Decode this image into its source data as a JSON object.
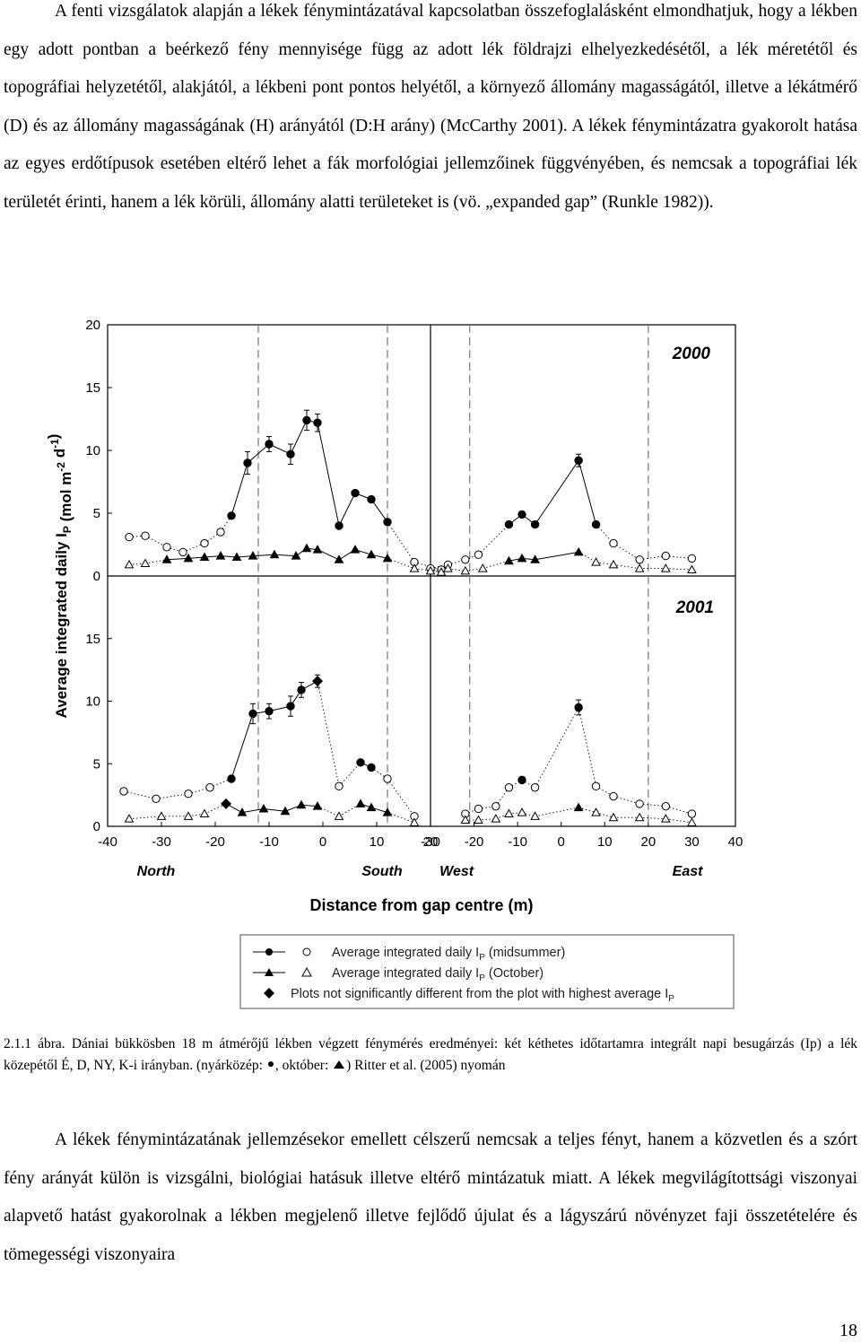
{
  "paragraph1": "A fenti vizsgálatok alapján a lékek fénymintázatával kapcsolatban összefoglalásként elmondhatjuk, hogy a lékben egy adott pontban a beérkező fény mennyisége függ az adott lék földrajzi elhelyezkedésétől, a lék méretétől és topográfiai helyzetétől, alakjától, a lékbeni pont pontos helyétől, a környező állomány magasságától, illetve a lékátmérő (D) és az állomány magasságának (H) arányától (D:H arány) (McCarthy 2001). A lékek fénymintázatra gyakorolt hatása az egyes erdőtípusok esetében eltérő lehet a fák morfológiai jellemzőinek függvényében, és nemcsak a topográfiai lék területét érinti, hanem a lék körüli, állomány alatti területeket is (vö. „expanded gap” (Runkle 1982)).",
  "caption": {
    "part1": "2.1.1 ábra. Dániai bükkösben 18 m átmérőjű lékben végzett fénymérés eredményei: két kéthetes időtartamra integrált napi besugárzás (Ip) a lék közepétől É, D, NY, K-i irányban. (nyárközép: ",
    "part2": ", október: ",
    "part3": ") Ritter et al. (2005) nyomán"
  },
  "paragraph2": "A lékek fénymintázatának jellemzésekor emellett célszerű nemcsak a teljes fényt, hanem a közvetlen és a szórt fény arányát külön is vizsgálni, biológiai hatásuk illetve eltérő mintázatuk miatt. A lékek megvilágítottsági viszonyai alapvető hatást gyakorolnak a lékben megjelenő illetve fejlődő újulat és a lágyszárú növényzet faji összetételére és tömegességi viszonyaira",
  "page_number": "18",
  "chart_data": {
    "type": "scatter",
    "ylabel": "Average integrated daily I",
    "ylabel_sub": "P",
    "ylabel_units": " (mol m",
    "ylabel_exp1": "-2",
    "ylabel_d": " d",
    "ylabel_exp2": "-1",
    "ylabel_close": ")",
    "xlabel": "Distance from gap centre (m)",
    "ylim": [
      0,
      20
    ],
    "yticks": [
      "0",
      "5",
      "10",
      "15",
      "20"
    ],
    "left_xlim": [
      -40,
      20
    ],
    "right_xlim": [
      -30,
      40
    ],
    "left_xticks": [
      "-40",
      "-30",
      "-20",
      "-10",
      "0",
      "10",
      "20"
    ],
    "right_xticks": [
      "-30",
      "-20",
      "-10",
      "0",
      "10",
      "20",
      "30",
      "40"
    ],
    "direction_labels": [
      "North",
      "South",
      "West",
      "East"
    ],
    "panels": [
      {
        "year": "2000",
        "row": 0,
        "side": "left",
        "gap_edges": [
          -12,
          12
        ],
        "midsummer": [
          [
            -36,
            3.1,
            "o"
          ],
          [
            -33,
            3.2,
            "o"
          ],
          [
            -29,
            2.3,
            "o"
          ],
          [
            -26,
            1.9,
            "o"
          ],
          [
            -22,
            2.6,
            "o"
          ],
          [
            -19,
            3.5,
            "o"
          ],
          [
            -17,
            4.8,
            "f"
          ],
          [
            -14,
            9.0,
            "f"
          ],
          [
            -10,
            10.5,
            "f"
          ],
          [
            -6,
            9.7,
            "f"
          ],
          [
            -3,
            12.4,
            "f"
          ],
          [
            -1,
            12.2,
            "f"
          ],
          [
            3,
            4.0,
            "f"
          ],
          [
            6,
            6.6,
            "f"
          ],
          [
            9,
            6.1,
            "f"
          ],
          [
            12,
            4.3,
            "f"
          ],
          [
            17,
            1.1,
            "o"
          ],
          [
            22,
            0.5,
            "o"
          ]
        ],
        "october": [
          [
            -36,
            0.9,
            "o"
          ],
          [
            -33,
            1.0,
            "o"
          ],
          [
            -29,
            1.3,
            "f"
          ],
          [
            -25,
            1.4,
            "f"
          ],
          [
            -22,
            1.5,
            "f"
          ],
          [
            -19,
            1.6,
            "f"
          ],
          [
            -16,
            1.5,
            "f"
          ],
          [
            -13,
            1.6,
            "f"
          ],
          [
            -9,
            1.7,
            "f"
          ],
          [
            -5,
            1.6,
            "f"
          ],
          [
            -3,
            2.2,
            "f"
          ],
          [
            -1,
            2.1,
            "f"
          ],
          [
            3,
            1.3,
            "f"
          ],
          [
            6,
            2.1,
            "f"
          ],
          [
            9,
            1.7,
            "f"
          ],
          [
            12,
            1.4,
            "f"
          ],
          [
            17,
            0.6,
            "o"
          ],
          [
            22,
            0.3,
            "o"
          ]
        ],
        "errors": [
          [
            -14,
            9.0,
            0.9
          ],
          [
            -10,
            10.5,
            0.6
          ],
          [
            -6,
            9.7,
            0.8
          ],
          [
            -3,
            12.4,
            0.8
          ],
          [
            -1,
            12.2,
            0.7
          ]
        ]
      },
      {
        "year": "2000",
        "row": 0,
        "side": "right",
        "gap_edges": [
          -21,
          20
        ],
        "midsummer": [
          [
            -30,
            0.6,
            "o"
          ],
          [
            -26,
            0.9,
            "o"
          ],
          [
            -22,
            1.3,
            "o"
          ],
          [
            -19,
            1.7,
            "o"
          ],
          [
            -12,
            4.1,
            "f"
          ],
          [
            -9,
            4.9,
            "f"
          ],
          [
            -6,
            4.1,
            "f"
          ],
          [
            4,
            9.2,
            "f"
          ],
          [
            8,
            4.1,
            "f"
          ],
          [
            12,
            2.6,
            "o"
          ],
          [
            18,
            1.3,
            "o"
          ],
          [
            24,
            1.6,
            "o"
          ],
          [
            30,
            1.4,
            "o"
          ]
        ],
        "october": [
          [
            -30,
            0.4,
            "o"
          ],
          [
            -26,
            0.6,
            "o"
          ],
          [
            -22,
            0.4,
            "o"
          ],
          [
            -18,
            0.6,
            "o"
          ],
          [
            -12,
            1.2,
            "f"
          ],
          [
            -9,
            1.4,
            "f"
          ],
          [
            -6,
            1.3,
            "f"
          ],
          [
            4,
            1.9,
            "f"
          ],
          [
            8,
            1.1,
            "o"
          ],
          [
            12,
            0.9,
            "o"
          ],
          [
            18,
            0.6,
            "o"
          ],
          [
            24,
            0.6,
            "o"
          ],
          [
            30,
            0.5,
            "o"
          ]
        ],
        "errors": [
          [
            4,
            9.2,
            0.5
          ]
        ]
      },
      {
        "year": "2001",
        "row": 1,
        "side": "left",
        "gap_edges": [
          -12,
          12
        ],
        "midsummer": [
          [
            -37,
            2.8,
            "o"
          ],
          [
            -31,
            2.2,
            "o"
          ],
          [
            -25,
            2.6,
            "o"
          ],
          [
            -21,
            3.1,
            "o"
          ],
          [
            -17,
            3.8,
            "f"
          ],
          [
            -13,
            9.0,
            "f"
          ],
          [
            -10,
            9.2,
            "f"
          ],
          [
            -6,
            9.6,
            "f"
          ],
          [
            -4,
            10.9,
            "f"
          ],
          [
            -1,
            11.6,
            "d"
          ],
          [
            3,
            3.2,
            "o"
          ],
          [
            7,
            5.1,
            "f"
          ],
          [
            9,
            4.7,
            "f"
          ],
          [
            12,
            3.8,
            "o"
          ],
          [
            17,
            0.8,
            "o"
          ]
        ],
        "october": [
          [
            -36,
            0.6,
            "o"
          ],
          [
            -30,
            0.8,
            "o"
          ],
          [
            -25,
            0.8,
            "o"
          ],
          [
            -22,
            1.0,
            "o"
          ],
          [
            -18,
            1.8,
            "d"
          ],
          [
            -15,
            1.1,
            "f"
          ],
          [
            -11,
            1.4,
            "f"
          ],
          [
            -7,
            1.2,
            "f"
          ],
          [
            -4,
            1.7,
            "f"
          ],
          [
            -1,
            1.6,
            "f"
          ],
          [
            3,
            0.8,
            "o"
          ],
          [
            7,
            1.8,
            "f"
          ],
          [
            9,
            1.5,
            "f"
          ],
          [
            12,
            1.1,
            "f"
          ],
          [
            17,
            0.3,
            "o"
          ]
        ],
        "errors": [
          [
            -13,
            9.0,
            0.8
          ],
          [
            -10,
            9.2,
            0.6
          ],
          [
            -6,
            9.6,
            0.8
          ],
          [
            -4,
            10.9,
            0.6
          ],
          [
            -1,
            11.6,
            0.5
          ]
        ]
      },
      {
        "year": "2001",
        "row": 1,
        "side": "right",
        "gap_edges": [
          -21,
          20
        ],
        "midsummer": [
          [
            -22,
            1.0,
            "o"
          ],
          [
            -19,
            1.4,
            "o"
          ],
          [
            -15,
            1.6,
            "o"
          ],
          [
            -12,
            3.1,
            "o"
          ],
          [
            -9,
            3.7,
            "f"
          ],
          [
            -6,
            3.1,
            "o"
          ],
          [
            4,
            9.5,
            "f"
          ],
          [
            8,
            3.2,
            "o"
          ],
          [
            12,
            2.4,
            "o"
          ],
          [
            18,
            1.8,
            "o"
          ],
          [
            24,
            1.6,
            "o"
          ],
          [
            30,
            1.0,
            "o"
          ]
        ],
        "october": [
          [
            -22,
            0.5,
            "o"
          ],
          [
            -19,
            0.5,
            "o"
          ],
          [
            -15,
            0.6,
            "o"
          ],
          [
            -12,
            1.0,
            "o"
          ],
          [
            -9,
            1.1,
            "o"
          ],
          [
            -6,
            0.8,
            "o"
          ],
          [
            4,
            1.5,
            "f"
          ],
          [
            8,
            1.1,
            "o"
          ],
          [
            12,
            0.7,
            "o"
          ],
          [
            18,
            0.7,
            "o"
          ],
          [
            24,
            0.6,
            "o"
          ],
          [
            30,
            0.3,
            "o"
          ]
        ],
        "errors": [
          [
            4,
            9.5,
            0.6
          ]
        ]
      }
    ],
    "legend": [
      {
        "text": "Average integrated daily I",
        "sub": "P",
        "rest": " (midsummer)",
        "marker": "circle"
      },
      {
        "text": "Average integrated daily I",
        "sub": "P",
        "rest": " (October)",
        "marker": "triangle"
      },
      {
        "text": "Plots not significantly different from the plot with highest average I",
        "sub": "P",
        "rest": "",
        "marker": "diamond"
      }
    ]
  }
}
